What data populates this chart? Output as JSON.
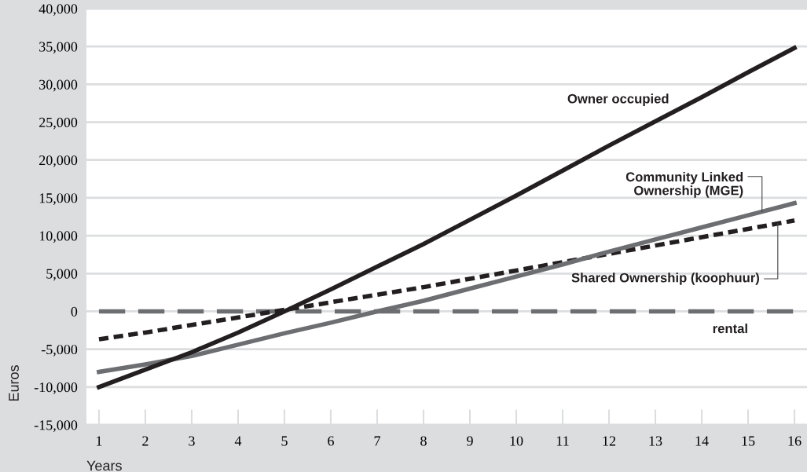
{
  "chart_data": {
    "type": "line",
    "xlabel": "Years",
    "ylabel": "Euros",
    "x": [
      1,
      2,
      3,
      4,
      5,
      6,
      7,
      8,
      9,
      10,
      11,
      12,
      13,
      14,
      15,
      16
    ],
    "xlim": [
      0.73,
      16.27
    ],
    "xticks": [
      1,
      2,
      3,
      4,
      5,
      6,
      7,
      8,
      9,
      10,
      11,
      12,
      13,
      14,
      15,
      16
    ],
    "ylim": [
      -15000,
      40000
    ],
    "yticks": [
      {
        "value": -15000,
        "label": "-15,000"
      },
      {
        "value": -10000,
        "label": "-10,000"
      },
      {
        "value": -5000,
        "label": "-5,000"
      },
      0,
      {
        "value": 5000,
        "label": "5,000"
      },
      {
        "value": 10000,
        "label": "10,000"
      },
      {
        "value": 15000,
        "label": "15,000"
      },
      {
        "value": 20000,
        "label": "20,000"
      },
      {
        "value": 25000,
        "label": "25,000"
      },
      {
        "value": 30000,
        "label": "30,000"
      },
      {
        "value": 35000,
        "label": "35,000"
      },
      {
        "value": 40000,
        "label": "40,000"
      }
    ],
    "grid": "y",
    "legend": false,
    "marker": "none",
    "series": [
      {
        "name": "Owner occupied",
        "color": "#231f20",
        "line_style": "solid",
        "values": [
          -10000,
          -7700,
          -5400,
          -2800,
          0,
          2900,
          5900,
          8900,
          12100,
          15300,
          18600,
          21900,
          25100,
          28300,
          31600,
          34800
        ]
      },
      {
        "name": "Community Linked\nOwnership (MGE)",
        "color": "#6d6e71",
        "line_style": "solid",
        "values": [
          -8000,
          -7000,
          -5900,
          -4400,
          -2900,
          -1500,
          0,
          1400,
          3000,
          4600,
          6200,
          7900,
          9500,
          11100,
          12700,
          14300
        ]
      },
      {
        "name": "Shared Ownership (koophuur)",
        "color": "#231f20",
        "line_style": "dotted",
        "values": [
          -3700,
          -2800,
          -1800,
          -800,
          200,
          1200,
          2200,
          3200,
          4300,
          5400,
          6500,
          7600,
          8700,
          9800,
          10900,
          12000
        ]
      },
      {
        "name": "rental",
        "color": "#6d6e71",
        "line_style": "dashed",
        "values": [
          0,
          0,
          0,
          0,
          0,
          0,
          0,
          0,
          0,
          0,
          0,
          0,
          0,
          0,
          0,
          0
        ]
      }
    ]
  }
}
